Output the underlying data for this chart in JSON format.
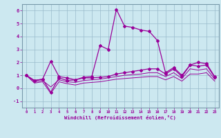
{
  "x": [
    0,
    1,
    2,
    3,
    4,
    5,
    6,
    7,
    8,
    9,
    10,
    11,
    12,
    13,
    14,
    15,
    16,
    17,
    18,
    19,
    20,
    21,
    22,
    23
  ],
  "line1": [
    1.0,
    0.6,
    0.7,
    2.1,
    0.9,
    0.8,
    0.65,
    0.85,
    0.9,
    3.3,
    3.0,
    6.1,
    4.8,
    4.7,
    4.5,
    4.4,
    3.7,
    1.2,
    1.6,
    1.0,
    1.8,
    2.0,
    1.9,
    0.9
  ],
  "line2": [
    1.0,
    0.6,
    0.7,
    -0.3,
    0.8,
    0.6,
    0.65,
    0.8,
    0.8,
    0.85,
    0.9,
    1.1,
    1.2,
    1.3,
    1.4,
    1.5,
    1.5,
    1.1,
    1.5,
    0.9,
    1.8,
    1.7,
    1.8,
    0.85
  ],
  "line3": [
    1.0,
    0.5,
    0.6,
    0.1,
    0.65,
    0.5,
    0.45,
    0.6,
    0.65,
    0.7,
    0.8,
    0.9,
    1.0,
    1.05,
    1.1,
    1.2,
    1.2,
    0.9,
    1.2,
    0.75,
    1.5,
    1.4,
    1.5,
    0.7
  ],
  "line4": [
    1.0,
    0.4,
    0.5,
    -0.4,
    0.5,
    0.35,
    0.25,
    0.4,
    0.45,
    0.5,
    0.6,
    0.7,
    0.75,
    0.8,
    0.85,
    0.9,
    0.9,
    0.65,
    0.9,
    0.55,
    1.1,
    1.1,
    1.2,
    0.55
  ],
  "bg_color": "#cce8f0",
  "line_color": "#990099",
  "grid_color": "#99bbcc",
  "xlabel": "Windchill (Refroidissement éolien,°C)",
  "ylim": [
    -1.5,
    6.5
  ],
  "xlim": [
    -0.5,
    23.5
  ],
  "yticks": [
    -1,
    0,
    1,
    2,
    3,
    4,
    5,
    6
  ],
  "xticks": [
    0,
    1,
    2,
    3,
    4,
    5,
    6,
    7,
    8,
    9,
    10,
    11,
    12,
    13,
    14,
    15,
    16,
    17,
    18,
    19,
    20,
    21,
    22,
    23
  ]
}
